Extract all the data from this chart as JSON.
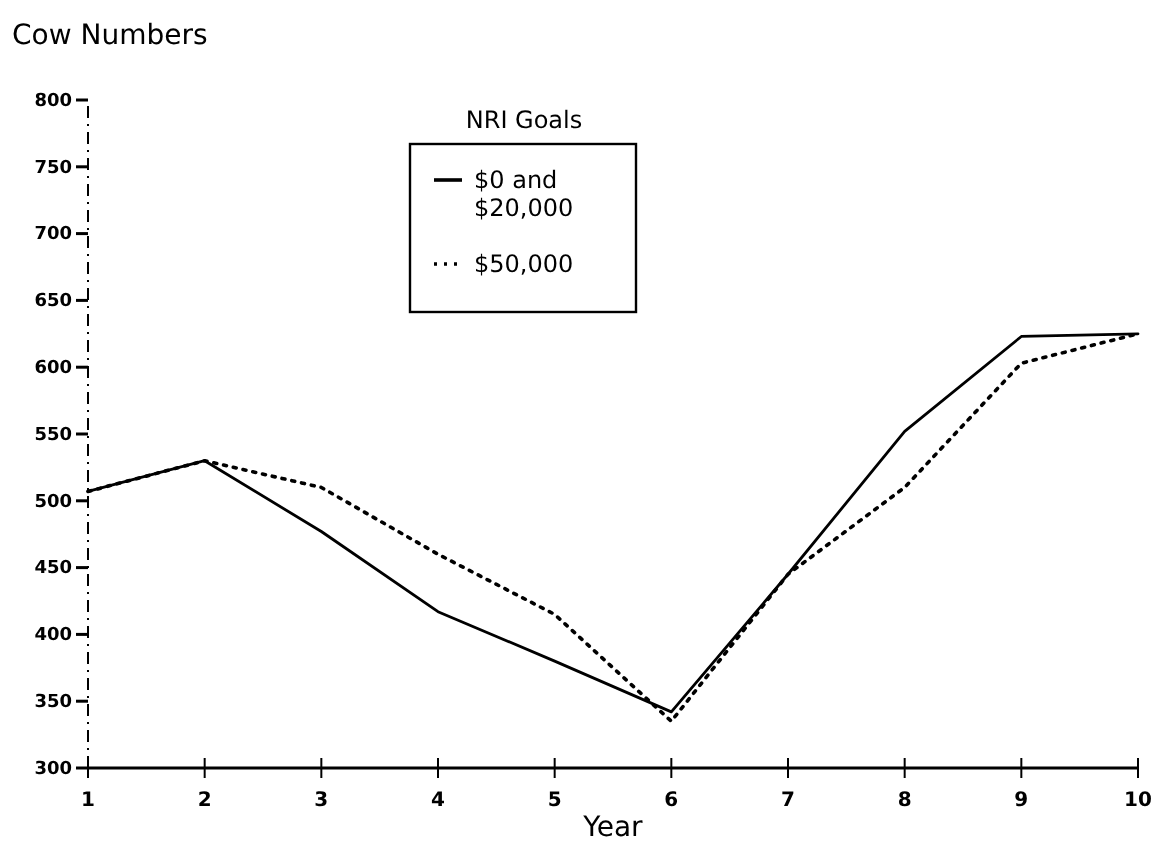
{
  "chart_data": {
    "type": "line",
    "ylabel": "Cow Numbers",
    "xlabel": "Year",
    "legend_title": "NRI Goals",
    "legend": "top left",
    "x": [
      1,
      2,
      3,
      4,
      5,
      6,
      7,
      8,
      9,
      10
    ],
    "series": [
      {
        "name": "$0 and $20,000",
        "color": "#000000",
        "line_style": "solid",
        "values": [
          507,
          530,
          477,
          417,
          380,
          342,
          445,
          552,
          623,
          625
        ]
      },
      {
        "name": "$50,000",
        "color": "#000000",
        "line_style": "dotted",
        "values": [
          507,
          530,
          510,
          460,
          415,
          335,
          445,
          510,
          603,
          625
        ]
      }
    ],
    "xlim": [
      1,
      10
    ],
    "xticks": [
      1,
      2,
      3,
      4,
      5,
      6,
      7,
      8,
      9,
      10
    ],
    "ylim": [
      300,
      800
    ],
    "yticks": [
      300,
      350,
      400,
      450,
      500,
      550,
      600,
      650,
      700,
      750,
      800
    ],
    "grid": false,
    "marker": "none"
  }
}
